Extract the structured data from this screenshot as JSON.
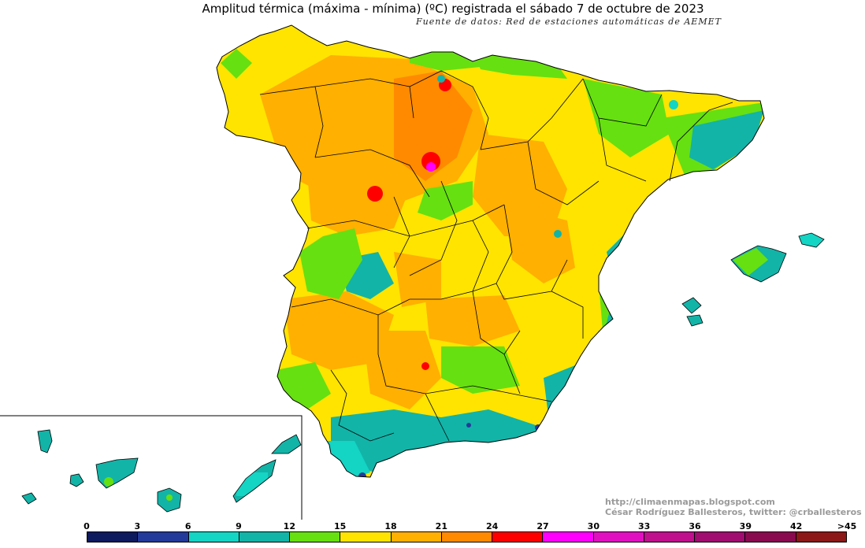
{
  "header": {
    "title": "Amplitud térmica (máxima - mínima) (ºC) registrada el sábado 7 de octubre de 2023",
    "subtitle": "Fuente de datos: Red de estaciones automáticas de AEMET"
  },
  "credits": {
    "url": "http://climaenmapas.blogspot.com",
    "author": "César Rodríguez Ballesteros, twitter: @crballesteros"
  },
  "legend": {
    "unit": "ºC",
    "ticks": [
      "0",
      "3",
      "6",
      "9",
      "12",
      "15",
      "18",
      "21",
      "24",
      "27",
      "30",
      "33",
      "36",
      "39",
      "42",
      ">45"
    ],
    "colors": [
      "#0d1a5e",
      "#233a9a",
      "#14d4c4",
      "#12b4a8",
      "#66e010",
      "#ffe400",
      "#ffb000",
      "#ff8a00",
      "#ff0000",
      "#ff00ff",
      "#e010c0",
      "#c0108e",
      "#a00c70",
      "#8a0a50",
      "#8c1818"
    ]
  },
  "map": {
    "region": "Península Ibérica (España), Baleares y Canarias",
    "inset": "Islas Canarias"
  }
}
